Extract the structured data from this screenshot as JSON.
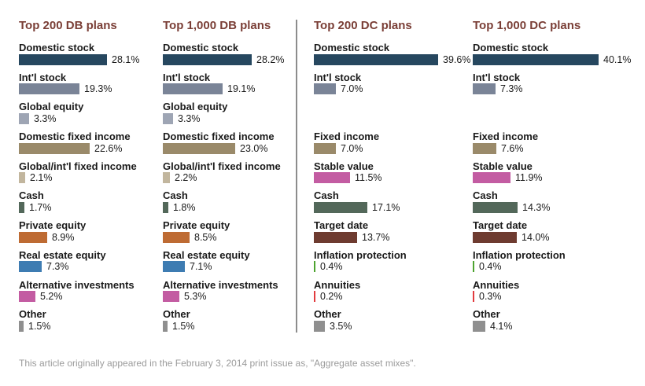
{
  "page": {
    "footer_note": "This article originally appeared in the February 3, 2014 print issue as, \"Aggregate asset mixes\"."
  },
  "chart_data": {
    "type": "bar",
    "orientation": "horizontal",
    "unit": "percent",
    "value_suffix": "%",
    "xlim": [
      0,
      45
    ],
    "grid": false,
    "legend": "none",
    "title_color": "#7a3e36",
    "divider_color": "#8c8c8c",
    "colors": {
      "Domestic stock": "#26475f",
      "Int'l stock": "#7a8497",
      "Global equity": "#9ea5b4",
      "Domestic fixed income": "#9a8a6a",
      "Global/int'l fixed income": "#c2b69e",
      "Cash": "#53685a",
      "Private equity": "#be6b33",
      "Real estate equity": "#3e7cb2",
      "Alternative investments": "#c35ca2",
      "Other": "#8f8f8f",
      "Fixed income": "#9a8a6a",
      "Stable value": "#c35ca2",
      "Target date": "#6e3b30",
      "Inflation protection": "#4da32f",
      "Annuities": "#e23b3e"
    },
    "charts": [
      {
        "title": "Top 200 DB plans",
        "rows": [
          {
            "label": "Domestic stock",
            "value": 28.1
          },
          {
            "label": "Int'l stock",
            "value": 19.3
          },
          {
            "label": "Global equity",
            "value": 3.3
          },
          {
            "label": "Domestic fixed income",
            "value": 22.6
          },
          {
            "label": "Global/int'l fixed income",
            "value": 2.1
          },
          {
            "label": "Cash",
            "value": 1.7
          },
          {
            "label": "Private equity",
            "value": 8.9
          },
          {
            "label": "Real estate equity",
            "value": 7.3
          },
          {
            "label": "Alternative investments",
            "value": 5.2
          },
          {
            "label": "Other",
            "value": 1.5
          }
        ]
      },
      {
        "title": "Top 1,000 DB plans",
        "rows": [
          {
            "label": "Domestic stock",
            "value": 28.2
          },
          {
            "label": "Int'l stock",
            "value": 19.1
          },
          {
            "label": "Global equity",
            "value": 3.3
          },
          {
            "label": "Domestic fixed income",
            "value": 23.0
          },
          {
            "label": "Global/int'l fixed income",
            "value": 2.2
          },
          {
            "label": "Cash",
            "value": 1.8
          },
          {
            "label": "Private equity",
            "value": 8.5
          },
          {
            "label": "Real estate equity",
            "value": 7.1
          },
          {
            "label": "Alternative investments",
            "value": 5.3
          },
          {
            "label": "Other",
            "value": 1.5
          }
        ]
      },
      {
        "title": "Top 200 DC plans",
        "rows": [
          {
            "label": "Domestic stock",
            "value": 39.6
          },
          {
            "label": "Int'l stock",
            "value": 7.0
          },
          null,
          {
            "label": "Fixed income",
            "value": 7.0
          },
          {
            "label": "Stable value",
            "value": 11.5
          },
          {
            "label": "Cash",
            "value": 17.1
          },
          {
            "label": "Target date",
            "value": 13.7
          },
          {
            "label": "Inflation protection",
            "value": 0.4
          },
          {
            "label": "Annuities",
            "value": 0.2
          },
          {
            "label": "Other",
            "value": 3.5
          }
        ]
      },
      {
        "title": "Top 1,000 DC plans",
        "rows": [
          {
            "label": "Domestic stock",
            "value": 40.1
          },
          {
            "label": "Int'l stock",
            "value": 7.3
          },
          null,
          {
            "label": "Fixed income",
            "value": 7.6
          },
          {
            "label": "Stable value",
            "value": 11.9
          },
          {
            "label": "Cash",
            "value": 14.3
          },
          {
            "label": "Target date",
            "value": 14.0
          },
          {
            "label": "Inflation protection",
            "value": 0.4
          },
          {
            "label": "Annuities",
            "value": 0.3
          },
          {
            "label": "Other",
            "value": 4.1
          }
        ]
      }
    ]
  }
}
